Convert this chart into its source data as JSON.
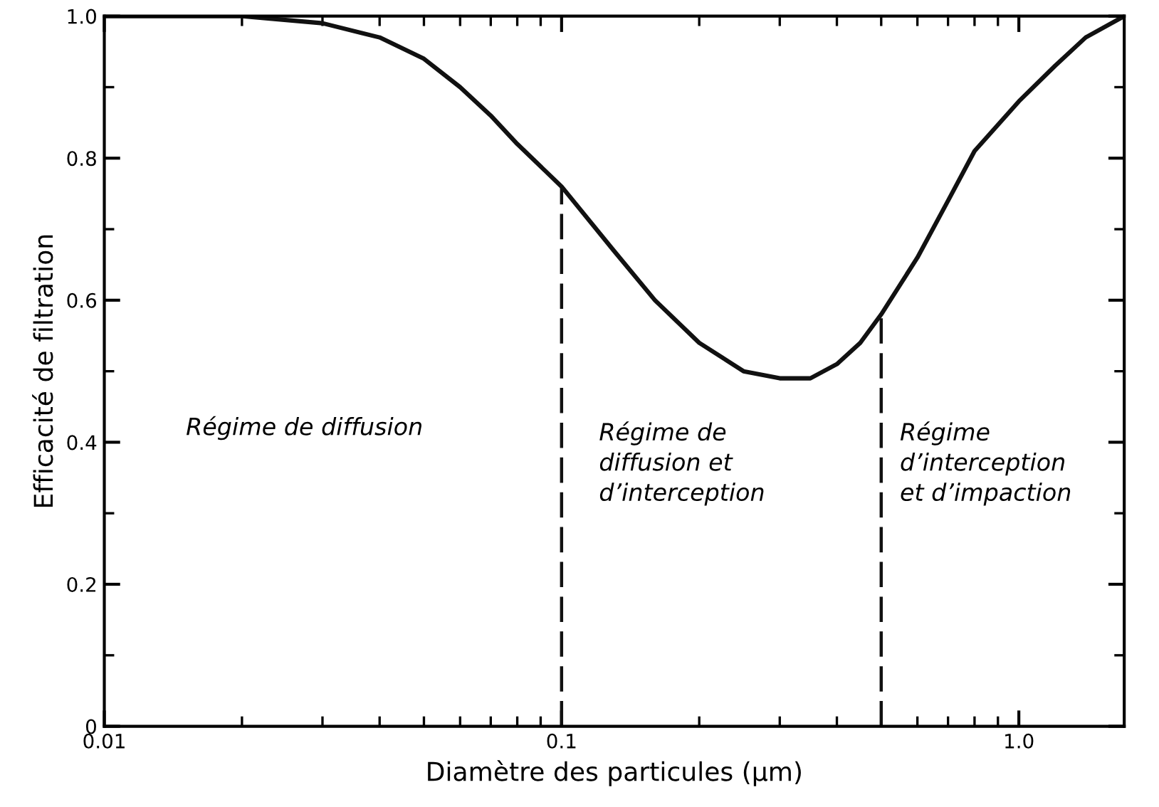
{
  "chart_data": {
    "type": "line",
    "xlabel": "Diamètre des particules (µm)",
    "ylabel": "Efficacité de filtration",
    "log": "x",
    "xlim": [
      0.01,
      1.7
    ],
    "xticks": [
      0.01,
      0.1,
      {
        "value": 1,
        "label": "1.0"
      }
    ],
    "ylim": [
      0,
      1.0
    ],
    "yticks": [
      0,
      0.2,
      0.4,
      0.6,
      0.8,
      {
        "value": 1,
        "label": "1.0"
      }
    ],
    "grid": false,
    "marker": "none",
    "line_style": "solid",
    "series": [
      {
        "color": "#111111",
        "x": [
          0.01,
          0.02,
          0.03,
          0.04,
          0.05,
          0.06,
          0.07,
          0.08,
          0.1,
          0.13,
          0.16,
          0.2,
          0.25,
          0.3,
          0.35,
          0.4,
          0.45,
          0.5,
          0.6,
          0.7,
          0.8,
          1.0,
          1.2,
          1.4,
          1.7
        ],
        "values": [
          1.0,
          1.0,
          0.99,
          0.97,
          0.94,
          0.9,
          0.86,
          0.82,
          0.76,
          0.67,
          0.6,
          0.54,
          0.5,
          0.49,
          0.49,
          0.51,
          0.54,
          0.58,
          0.66,
          0.74,
          0.81,
          0.88,
          0.93,
          0.97,
          1.0
        ]
      }
    ],
    "ref_lines": [
      {
        "axis": "x",
        "value": 0.1,
        "color": "#111111",
        "line_style": "dashed"
      },
      {
        "axis": "x",
        "value": 0.5,
        "color": "#111111",
        "line_style": "dashed"
      }
    ],
    "annotations": [
      "Régime de diffusion",
      "Régime de\ndiffusion et\nd’interception",
      "Régime\nd’interception\net d’impaction"
    ]
  }
}
